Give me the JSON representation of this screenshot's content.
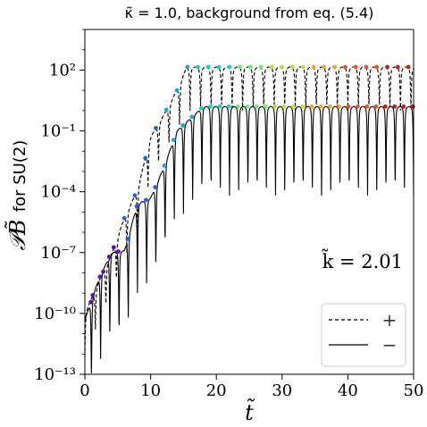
{
  "chart_data": {
    "type": "line",
    "title": "κ̃ = 1.0, background from eq. (5.4)",
    "xlabel": "t̃",
    "ylabel_main": "𝒫B̃",
    "ylabel_suffix": "for SU(2)",
    "annotation": "k̃ = 2.01",
    "xlim": [
      0,
      50
    ],
    "ylim_log10": [
      -13,
      4
    ],
    "xticks": [
      0,
      10,
      20,
      30,
      40,
      50
    ],
    "yticks_log10": [
      -13,
      -10,
      -7,
      -4,
      -1,
      2
    ],
    "ytick_labels": [
      "10⁻¹³",
      "10⁻¹⁰",
      "10⁻⁷",
      "10⁻⁴",
      "10⁻¹",
      "10²"
    ],
    "xtick_labels": [
      "0",
      "10",
      "20",
      "30",
      "40",
      "50"
    ],
    "legend": {
      "position": "lower-right",
      "entries": [
        {
          "label": "+",
          "style": "dashed"
        },
        {
          "label": "−",
          "style": "solid"
        }
      ]
    },
    "grid": false,
    "series": [
      {
        "name": "+",
        "style": "dashed",
        "color": "#000000",
        "envelope_log10": {
          "t": [
            0,
            2,
            4,
            6,
            8,
            10,
            12,
            14,
            15.5,
            50
          ],
          "v": [
            -10.0,
            -8.5,
            -7.1,
            -5.3,
            -3.9,
            -1.3,
            -0.2,
            1.0,
            2.15,
            2.15
          ]
        },
        "oscillation_half_period": 1.6,
        "dip_depth_log10": 1.9
      },
      {
        "name": "−",
        "style": "solid",
        "color": "#000000",
        "envelope_log10": {
          "t": [
            0,
            2,
            4,
            6,
            8,
            10,
            12,
            14,
            16,
            18,
            50
          ],
          "v": [
            -10.3,
            -8.4,
            -7.0,
            -6.9,
            -4.6,
            -4.3,
            -2.8,
            -1.0,
            -0.4,
            0.2,
            0.2
          ]
        },
        "oscillation_half_period": 1.4,
        "dip_depth_log10": 4.2
      }
    ],
    "marker_colormap": [
      "#5a0fb5",
      "#2c5be0",
      "#1aa7d8",
      "#1fd1b0",
      "#6ee67a",
      "#c9d94a",
      "#f0a530",
      "#e8532a",
      "#c01f1a"
    ]
  }
}
